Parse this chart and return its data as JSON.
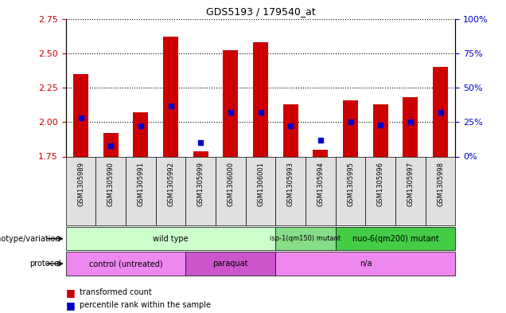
{
  "title": "GDS5193 / 179540_at",
  "samples": [
    "GSM1305989",
    "GSM1305990",
    "GSM1305991",
    "GSM1305992",
    "GSM1305999",
    "GSM1306000",
    "GSM1306001",
    "GSM1305993",
    "GSM1305994",
    "GSM1305995",
    "GSM1305996",
    "GSM1305997",
    "GSM1305998"
  ],
  "transformed_counts": [
    2.35,
    1.92,
    2.07,
    2.62,
    1.79,
    2.52,
    2.58,
    2.13,
    1.8,
    2.16,
    2.13,
    2.18,
    2.4
  ],
  "percentile_ranks": [
    28,
    8,
    22,
    37,
    10,
    32,
    32,
    22,
    12,
    25,
    23,
    25,
    32
  ],
  "ylim_left": [
    1.75,
    2.75
  ],
  "ylim_right": [
    0,
    100
  ],
  "yticks_left": [
    1.75,
    2.0,
    2.25,
    2.5,
    2.75
  ],
  "yticks_right": [
    0,
    25,
    50,
    75,
    100
  ],
  "ytick_labels_right": [
    "0%",
    "25%",
    "50%",
    "75%",
    "100%"
  ],
  "bar_color": "#cc0000",
  "dot_color": "#0000cc",
  "bar_bottom": 1.75,
  "genotype_groups": [
    {
      "label": "wild type",
      "start": 0,
      "end": 7,
      "color": "#ccffcc"
    },
    {
      "label": "isp-1(qm150) mutant",
      "start": 7,
      "end": 9,
      "color": "#88dd88"
    },
    {
      "label": "nuo-6(qm200) mutant",
      "start": 9,
      "end": 13,
      "color": "#44cc44"
    }
  ],
  "protocol_groups": [
    {
      "label": "control (untreated)",
      "start": 0,
      "end": 4,
      "color": "#ee88ee"
    },
    {
      "label": "paraquat",
      "start": 4,
      "end": 7,
      "color": "#cc55cc"
    },
    {
      "label": "n/a",
      "start": 7,
      "end": 13,
      "color": "#ee88ee"
    }
  ],
  "bar_width": 0.5,
  "xlabel_color": "#cc0000",
  "ylabel_right_color": "#0000cc"
}
